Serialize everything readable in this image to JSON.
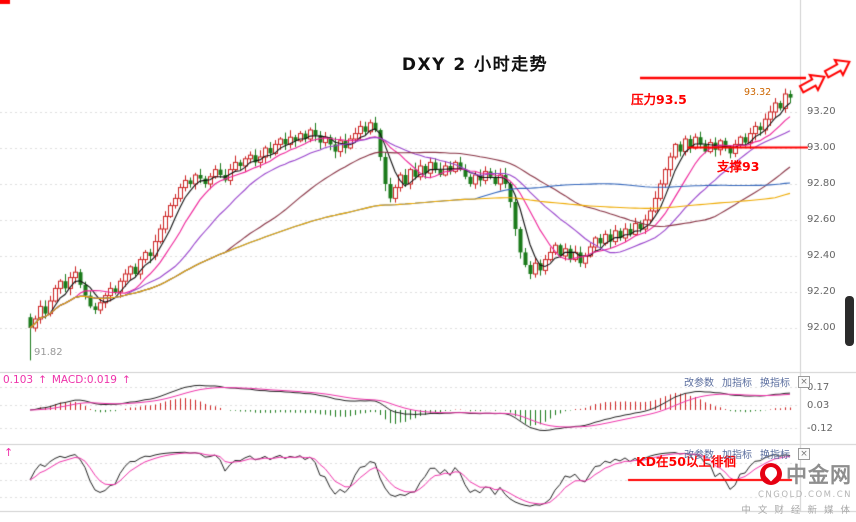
{
  "title": "DXY 2 小时走势",
  "chart_data": {
    "type": "candlestick",
    "instrument": "DXY",
    "interval": "2小时",
    "up_color": "#cc2222",
    "down_color": "#1a7a1a",
    "first_low": 91.82,
    "last_high": 93.32,
    "closes": [
      92.0,
      92.05,
      92.12,
      92.08,
      92.15,
      92.22,
      92.26,
      92.22,
      92.28,
      92.31,
      92.24,
      92.18,
      92.12,
      92.1,
      92.14,
      92.18,
      92.22,
      92.2,
      92.26,
      92.3,
      92.34,
      92.3,
      92.38,
      92.42,
      92.4,
      92.48,
      92.55,
      92.62,
      92.68,
      92.72,
      92.78,
      92.82,
      92.8,
      92.85,
      92.83,
      92.8,
      92.84,
      92.88,
      92.85,
      92.82,
      92.88,
      92.92,
      92.9,
      92.94,
      92.96,
      92.92,
      92.95,
      93.0,
      92.97,
      93.02,
      93.05,
      93.02,
      93.06,
      93.04,
      93.08,
      93.05,
      93.1,
      93.07,
      93.03,
      93.06,
      93.02,
      92.98,
      93.04,
      93.0,
      93.05,
      93.08,
      93.12,
      93.09,
      93.14,
      93.1,
      92.95,
      92.8,
      92.72,
      92.78,
      92.85,
      92.8,
      92.88,
      92.84,
      92.9,
      92.86,
      92.92,
      92.88,
      92.85,
      92.9,
      92.87,
      92.92,
      92.88,
      92.84,
      92.8,
      92.85,
      92.82,
      92.87,
      92.84,
      92.8,
      92.85,
      92.8,
      92.7,
      92.55,
      92.42,
      92.35,
      92.3,
      92.36,
      92.32,
      92.38,
      92.42,
      92.46,
      92.4,
      92.44,
      92.38,
      92.42,
      92.36,
      92.4,
      92.45,
      92.5,
      92.47,
      92.52,
      92.48,
      92.54,
      92.5,
      92.55,
      92.52,
      92.58,
      92.55,
      92.6,
      92.65,
      92.72,
      92.8,
      92.88,
      92.95,
      93.02,
      92.98,
      93.05,
      93.0,
      93.06,
      93.02,
      92.98,
      93.03,
      92.99,
      93.04,
      93.0,
      92.97,
      93.02,
      93.06,
      93.03,
      93.08,
      93.12,
      93.1,
      93.16,
      93.2,
      93.25,
      93.22,
      93.3,
      93.28
    ],
    "ma_lines": [
      {
        "period": 5,
        "color": "#111111"
      },
      {
        "period": 10,
        "color": "#ee2299"
      },
      {
        "period": 20,
        "color": "#9944cc"
      },
      {
        "period": 40,
        "color": "#883344"
      },
      {
        "period": 90,
        "color": "#3366bb"
      },
      {
        "period": 150,
        "color": "#eeaa00"
      }
    ],
    "y_axis_labels": [
      "93.20",
      "93.00",
      "92.80",
      "92.60",
      "92.40",
      "92.20",
      "92.00"
    ],
    "sub_charts": [
      {
        "name": "MACD",
        "axis_labels": [
          "0.17",
          "0.03",
          "-0.12"
        ],
        "dif_color": "#222222",
        "dea_color": "#ee33aa"
      },
      {
        "name": "KDJ",
        "k_color": "#222222",
        "d_color": "#ee33aa"
      }
    ]
  },
  "macd_panel": {
    "value_label": "0.103",
    "arrow": "↑",
    "macd_label": "MACD:0.019"
  },
  "kdj_panel": {
    "arrow": "↑"
  },
  "indicator_toolbar": {
    "links": [
      "改参数",
      "加指标",
      "换指标"
    ],
    "close": "×"
  },
  "annotations": {
    "resistance_label": "压力93.5",
    "support_label": "支撑93",
    "price_tag": "93.32",
    "low_tag": "91.82",
    "kd_note": "KD在50以上徘徊",
    "accent_color": "#ff0000"
  },
  "watermark": {
    "name": "中金网",
    "domain": "CNGOLD.COM.CN",
    "slogan": "中 文 财 经 新 媒 体"
  }
}
